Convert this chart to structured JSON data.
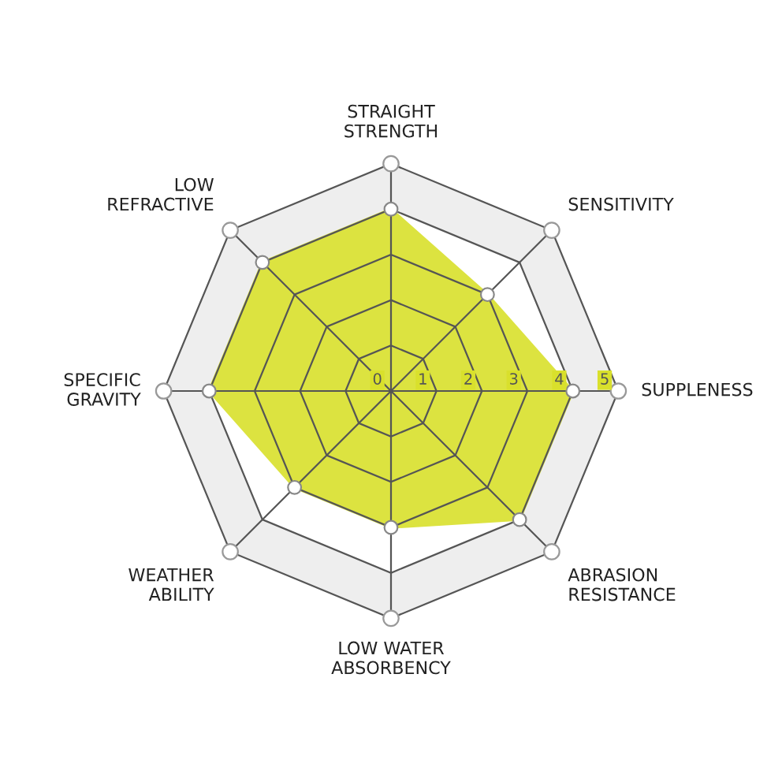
{
  "chart_data": {
    "type": "radar",
    "categories": [
      "STRAIGHT\nSTRENGTH",
      "SENSITIVITY",
      "SUPPLENESS",
      "ABRASION\nRESISTANCE",
      "LOW WATER\nABSORBENCY",
      "WEATHER\nABILITY",
      "SPECIFIC\nGRAVITY",
      "LOW\nREFRACTIVE"
    ],
    "series": [
      {
        "color": "#d9e02c",
        "values": [
          4,
          3,
          4,
          4,
          3,
          3,
          4,
          4
        ]
      }
    ],
    "ylim": [
      0,
      5
    ],
    "yticks": [
      0,
      1,
      2,
      3,
      4,
      5
    ],
    "marker": "circle",
    "grid": true
  }
}
